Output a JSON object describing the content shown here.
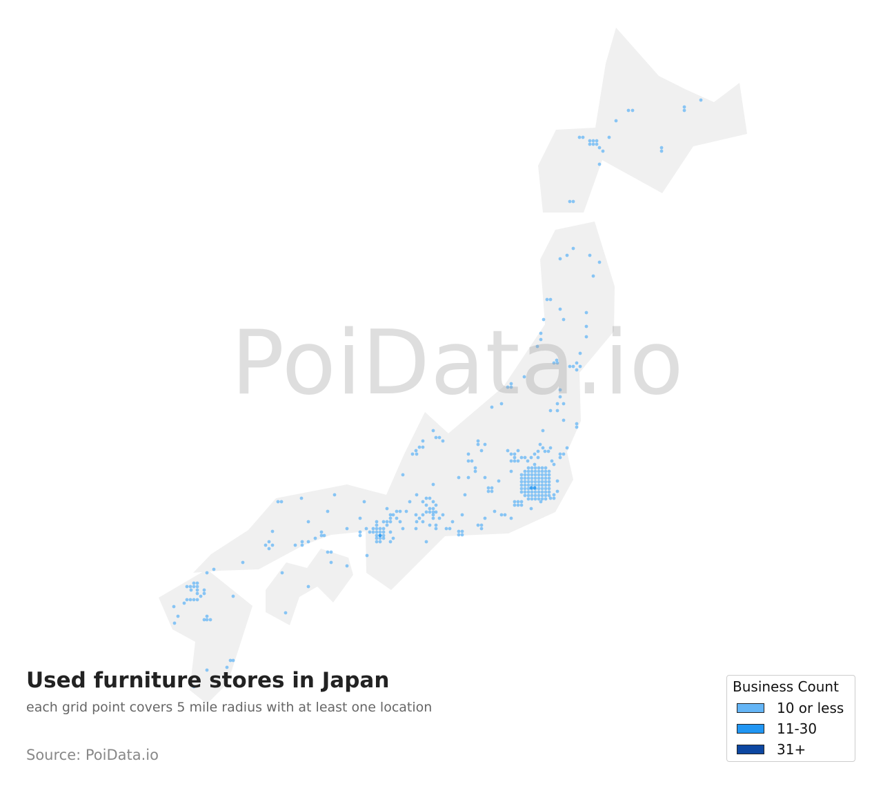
{
  "title": "Used furniture stores in Japan",
  "subtitle": "each grid point covers 5 mile radius with at least one location",
  "source": "Source: PoiData.io",
  "watermark": "PoiData.io",
  "land_color": "#f0f0f0",
  "legend": {
    "title": "Business Count",
    "items": [
      {
        "label": "10 or less",
        "color": "#64b5f6"
      },
      {
        "label": "11-30",
        "color": "#2196f3"
      },
      {
        "label": "31+",
        "color": "#0d47a1"
      }
    ]
  }
}
